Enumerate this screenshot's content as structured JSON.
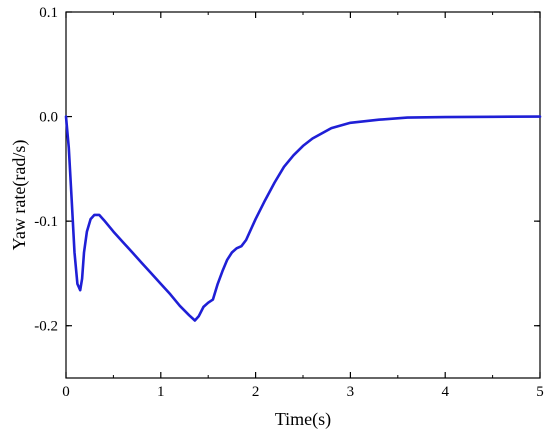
{
  "chart_data": {
    "type": "line",
    "title": "",
    "xlabel": "Time(s)",
    "ylabel": "Yaw rate(rad/s)",
    "xlim": [
      0,
      5
    ],
    "ylim": [
      -0.25,
      0.1
    ],
    "x_ticks": [
      0,
      1,
      2,
      3,
      4,
      5
    ],
    "x_tick_labels": [
      "0",
      "1",
      "2",
      "3",
      "4",
      "5"
    ],
    "y_ticks": [
      0.1,
      0.0,
      -0.1,
      -0.2
    ],
    "y_tick_labels": [
      "0.1",
      "0.0",
      "-0.1",
      "-0.2"
    ],
    "grid": false,
    "legend": "none",
    "series": [
      {
        "color": "#1f1fd6",
        "x": [
          0,
          0.03,
          0.06,
          0.09,
          0.12,
          0.15,
          0.17,
          0.19,
          0.22,
          0.26,
          0.3,
          0.35,
          0.4,
          0.5,
          0.6,
          0.7,
          0.8,
          0.9,
          1.0,
          1.1,
          1.2,
          1.3,
          1.36,
          1.4,
          1.45,
          1.5,
          1.55,
          1.6,
          1.65,
          1.7,
          1.75,
          1.8,
          1.85,
          1.9,
          2.0,
          2.1,
          2.2,
          2.3,
          2.4,
          2.5,
          2.6,
          2.8,
          3.0,
          3.3,
          3.6,
          4.0,
          4.5,
          5.0
        ],
        "y": [
          0.0,
          -0.03,
          -0.08,
          -0.13,
          -0.16,
          -0.166,
          -0.155,
          -0.13,
          -0.11,
          -0.098,
          -0.094,
          -0.094,
          -0.099,
          -0.11,
          -0.12,
          -0.13,
          -0.14,
          -0.15,
          -0.16,
          -0.17,
          -0.181,
          -0.19,
          -0.195,
          -0.191,
          -0.182,
          -0.178,
          -0.175,
          -0.16,
          -0.148,
          -0.137,
          -0.13,
          -0.126,
          -0.124,
          -0.118,
          -0.098,
          -0.08,
          -0.063,
          -0.048,
          -0.037,
          -0.028,
          -0.021,
          -0.011,
          -0.006,
          -0.003,
          -0.001,
          -0.0005,
          -0.0002,
          0.0
        ]
      }
    ]
  }
}
